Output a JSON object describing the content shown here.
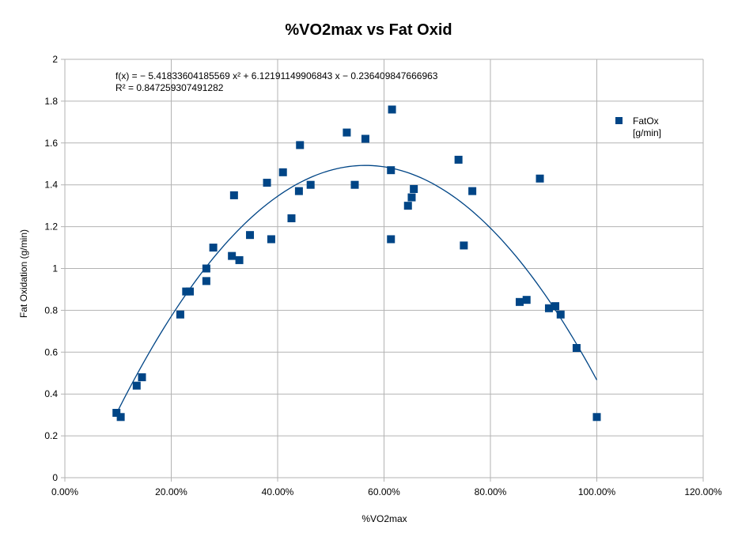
{
  "chart_data": {
    "type": "scatter",
    "title": "%VO2max vs Fat Oxid",
    "xlabel": "%VO2max",
    "ylabel": "Fat Oxidation (g/min)",
    "xlim": [
      0,
      1.2
    ],
    "ylim": [
      0,
      2
    ],
    "x_ticks": [
      0,
      0.2,
      0.4,
      0.6,
      0.8,
      1.0,
      1.2
    ],
    "x_tick_labels": [
      "0.00%",
      "20.00%",
      "40.00%",
      "60.00%",
      "80.00%",
      "100.00%",
      "120.00%"
    ],
    "y_ticks": [
      0,
      0.2,
      0.4,
      0.6,
      0.8,
      1,
      1.2,
      1.4,
      1.6,
      1.8,
      2
    ],
    "y_tick_labels": [
      "0",
      "0.2",
      "0.4",
      "0.6",
      "0.8",
      "1",
      "1.2",
      "1.4",
      "1.6",
      "1.8",
      "2"
    ],
    "grid": true,
    "legend_position": "right",
    "marker_color": "#004586",
    "series": [
      {
        "name": "FatOx [g/min]",
        "legend_lines": [
          "FatOx",
          "[g/min]"
        ],
        "points": [
          [
            0.097,
            0.31
          ],
          [
            0.105,
            0.29
          ],
          [
            0.135,
            0.44
          ],
          [
            0.145,
            0.48
          ],
          [
            0.217,
            0.78
          ],
          [
            0.228,
            0.89
          ],
          [
            0.235,
            0.89
          ],
          [
            0.266,
            0.94
          ],
          [
            0.266,
            1.0
          ],
          [
            0.279,
            1.1
          ],
          [
            0.314,
            1.06
          ],
          [
            0.318,
            1.35
          ],
          [
            0.328,
            1.04
          ],
          [
            0.348,
            1.16
          ],
          [
            0.38,
            1.41
          ],
          [
            0.388,
            1.14
          ],
          [
            0.41,
            1.46
          ],
          [
            0.426,
            1.24
          ],
          [
            0.44,
            1.37
          ],
          [
            0.442,
            1.59
          ],
          [
            0.462,
            1.4
          ],
          [
            0.53,
            1.65
          ],
          [
            0.545,
            1.4
          ],
          [
            0.565,
            1.62
          ],
          [
            0.613,
            1.14
          ],
          [
            0.613,
            1.47
          ],
          [
            0.615,
            1.76
          ],
          [
            0.645,
            1.3
          ],
          [
            0.652,
            1.34
          ],
          [
            0.656,
            1.38
          ],
          [
            0.74,
            1.52
          ],
          [
            0.75,
            1.11
          ],
          [
            0.766,
            1.37
          ],
          [
            0.855,
            0.84
          ],
          [
            0.868,
            0.85
          ],
          [
            0.893,
            1.43
          ],
          [
            0.91,
            0.81
          ],
          [
            0.922,
            0.82
          ],
          [
            0.932,
            0.78
          ],
          [
            0.962,
            0.62
          ],
          [
            1.0,
            0.29
          ]
        ]
      }
    ],
    "trendline": {
      "type": "polynomial",
      "coefficients": [
        -0.236409847666963,
        6.12191149906843,
        -5.41833604185569
      ],
      "x_range": [
        0.097,
        1.0
      ],
      "color": "#004586",
      "equation_text": "f(x) = − 5.41833604185569 x² + 6.12191149906843 x − 0.236409847666963",
      "r2_text": "R² = 0.847259307491282"
    }
  }
}
